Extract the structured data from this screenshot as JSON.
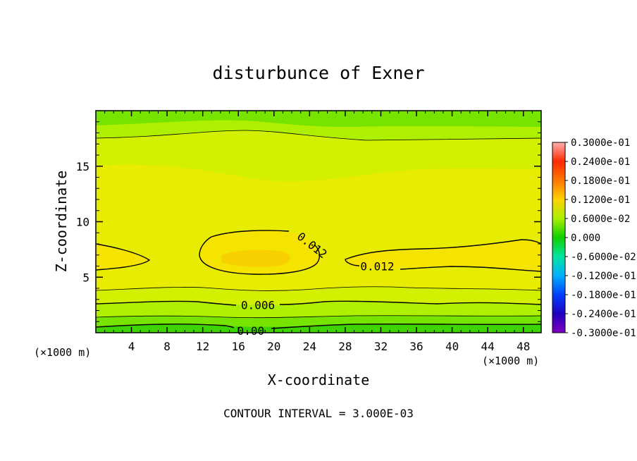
{
  "chart_data": {
    "type": "heatmap",
    "title": "disturbunce of Exner",
    "xlabel": "X-coordinate",
    "ylabel": "Z-coordinate",
    "x_unit_left": "(×1000 m)",
    "x_unit_right": "(×1000 m)",
    "xlim": [
      0,
      50
    ],
    "ylim": [
      0,
      20
    ],
    "x_ticks": [
      "4",
      "8",
      "12",
      "16",
      "20",
      "24",
      "28",
      "32",
      "36",
      "40",
      "44",
      "48"
    ],
    "y_ticks": [
      "5",
      "10",
      "15"
    ],
    "x_tick_values": [
      4,
      8,
      12,
      16,
      20,
      24,
      28,
      32,
      36,
      40,
      44,
      48
    ],
    "y_tick_values": [
      5,
      10,
      15
    ],
    "footer": "CONTOUR INTERVAL = 3.000E-03",
    "contour_interval": 0.003,
    "contour_labels": [
      {
        "text": "0.012",
        "x": 24.3,
        "y": 7.9
      },
      {
        "text": "0.012",
        "x": 31.6,
        "y": 6.0
      },
      {
        "text": "0.006",
        "x": 18.2,
        "y": 2.5
      },
      {
        "text": "0.00",
        "x": 17.4,
        "y": 0.2
      }
    ],
    "colorbar": {
      "labels": [
        "0.3000e-01",
        "0.2400e-01",
        "0.1800e-01",
        "0.1200e-01",
        "0.6000e-02",
        "0.000",
        "-0.6000e-02",
        "-0.1200e-01",
        "-0.1800e-01",
        "-0.2400e-01",
        "-0.3000e-01"
      ],
      "values": [
        0.03,
        0.024,
        0.018,
        0.012,
        0.006,
        0.0,
        -0.006,
        -0.012,
        -0.018,
        -0.024,
        -0.03
      ],
      "colors": [
        "#ffb0b0",
        "#ff2a00",
        "#ff7800",
        "#ffd200",
        "#a8f000",
        "#10d000",
        "#00e5a0",
        "#00b0ff",
        "#0040ff",
        "#2000c0",
        "#8000c0"
      ]
    },
    "field_colors": {
      "z_0": "#3ed400",
      "z_0_003": "#77e400",
      "z_0_006": "#aef000",
      "z_0_009": "#d2f000",
      "z_0_012": "#f5e400",
      "z_peak": "#f8d000"
    }
  }
}
